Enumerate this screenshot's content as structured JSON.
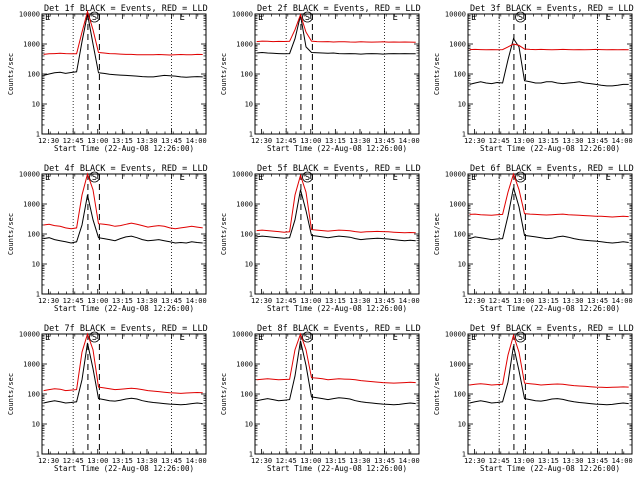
{
  "figure": {
    "panel_title_suffix": "BLACK = Events, RED = LLD",
    "xlabel": "Start Time (22-Aug-08 12:26:00)",
    "ylabel": "Counts/sec"
  },
  "colors": {
    "events": "#000000",
    "lld": "#e00000",
    "axes": "#000000"
  },
  "chart_data": [
    {
      "type": "line",
      "detector": "Det 1f",
      "title": "Det 1f  BLACK = Events, RED = LLD",
      "x_ticks": [
        "12:30",
        "12:45",
        "13:00",
        "13:15",
        "13:30",
        "13:45",
        "14:00"
      ],
      "y_ticks": [
        "1",
        "10",
        "100",
        "1000",
        "10000"
      ],
      "ylim": [
        1,
        10000
      ],
      "yscale": "log",
      "markers": [
        {
          "label": "S",
          "time": "12:58"
        },
        {
          "label": "E",
          "time": "12:26"
        },
        {
          "label": "E",
          "time": "13:48"
        }
      ],
      "series": [
        {
          "values": [
            90,
            100,
            110,
            115,
            105,
            112,
            118,
            1200,
            10000,
            1000,
            110,
            105,
            98,
            95,
            92,
            90,
            88,
            85,
            82,
            80,
            80,
            85,
            90,
            88,
            85,
            80,
            78,
            80,
            82,
            80
          ]
        },
        {
          "values": [
            450,
            470,
            480,
            490,
            480,
            475,
            470,
            2500,
            12000,
            3000,
            520,
            500,
            480,
            470,
            460,
            450,
            450,
            440,
            440,
            435,
            440,
            445,
            440,
            430,
            440,
            445,
            440,
            440,
            450,
            445
          ]
        }
      ]
    },
    {
      "type": "line",
      "detector": "Det 2f",
      "title": "Det 2f  BLACK = Events, RED = LLD",
      "x_ticks": [
        "12:30",
        "12:45",
        "13:00",
        "13:15",
        "13:30",
        "13:45",
        "14:00"
      ],
      "y_ticks": [
        "1",
        "10",
        "100",
        "1000",
        "10000"
      ],
      "ylim": [
        1,
        10000
      ],
      "yscale": "log",
      "markers": [
        {
          "label": "S",
          "time": "12:58"
        },
        {
          "label": "E",
          "time": "12:26"
        },
        {
          "label": "E",
          "time": "13:48"
        }
      ],
      "series": [
        {
          "values": [
            500,
            520,
            500,
            490,
            480,
            470,
            480,
            1500,
            9000,
            800,
            520,
            510,
            500,
            490,
            500,
            480,
            470,
            480,
            470,
            460,
            470,
            480,
            470,
            460,
            470,
            480,
            470,
            480,
            470,
            470
          ]
        },
        {
          "values": [
            1200,
            1250,
            1230,
            1200,
            1220,
            1210,
            1230,
            3000,
            9500,
            2500,
            1250,
            1200,
            1180,
            1200,
            1170,
            1180,
            1190,
            1170,
            1160,
            1180,
            1170,
            1160,
            1170,
            1180,
            1160,
            1170,
            1160,
            1170,
            1160,
            1150
          ]
        }
      ]
    },
    {
      "type": "line",
      "detector": "Det 3f",
      "title": "Det 3f  BLACK = Events, RED = LLD",
      "x_ticks": [
        "12:30",
        "12:45",
        "13:00",
        "13:15",
        "13:30",
        "13:45",
        "14:00"
      ],
      "y_ticks": [
        "1",
        "10",
        "100",
        "1000",
        "10000"
      ],
      "ylim": [
        1,
        10000
      ],
      "yscale": "log",
      "markers": [
        {
          "label": "S",
          "time": "12:58"
        },
        {
          "label": "E",
          "time": "12:26"
        },
        {
          "label": "E",
          "time": "13:48"
        }
      ],
      "series": [
        {
          "values": [
            45,
            50,
            55,
            50,
            48,
            52,
            50,
            300,
            1500,
            800,
            60,
            55,
            50,
            50,
            55,
            55,
            50,
            48,
            50,
            52,
            55,
            50,
            48,
            45,
            42,
            40,
            40,
            42,
            45,
            45
          ]
        },
        {
          "values": [
            650,
            660,
            650,
            640,
            650,
            640,
            650,
            800,
            1000,
            900,
            680,
            660,
            650,
            660,
            650,
            640,
            650,
            660,
            650,
            640,
            650,
            640,
            650,
            660,
            650,
            640,
            650,
            640,
            650,
            640
          ]
        }
      ]
    },
    {
      "type": "line",
      "detector": "Det 4f",
      "title": "Det 4f  BLACK = Events, RED = LLD",
      "x_ticks": [
        "12:30",
        "12:45",
        "13:00",
        "13:15",
        "13:30",
        "13:45",
        "14:00"
      ],
      "y_ticks": [
        "1",
        "10",
        "100",
        "1000",
        "10000"
      ],
      "ylim": [
        1,
        10000
      ],
      "yscale": "log",
      "markers": [
        {
          "label": "S",
          "time": "12:58"
        },
        {
          "label": "E",
          "time": "12:26"
        },
        {
          "label": "E",
          "time": "13:48"
        }
      ],
      "series": [
        {
          "values": [
            70,
            75,
            65,
            60,
            55,
            50,
            55,
            200,
            2000,
            300,
            75,
            70,
            65,
            60,
            70,
            80,
            85,
            75,
            65,
            60,
            62,
            65,
            60,
            55,
            50,
            52,
            50,
            55,
            52,
            50
          ]
        },
        {
          "values": [
            200,
            210,
            190,
            180,
            160,
            150,
            160,
            2000,
            10000,
            3000,
            220,
            210,
            200,
            180,
            190,
            210,
            230,
            210,
            190,
            170,
            180,
            190,
            180,
            160,
            150,
            160,
            170,
            180,
            170,
            160
          ]
        }
      ]
    },
    {
      "type": "line",
      "detector": "Det 5f",
      "title": "Det 5f  BLACK = Events, RED = LLD",
      "x_ticks": [
        "12:30",
        "12:45",
        "13:00",
        "13:15",
        "13:30",
        "13:45",
        "14:00"
      ],
      "y_ticks": [
        "1",
        "10",
        "100",
        "1000",
        "10000"
      ],
      "ylim": [
        1,
        10000
      ],
      "yscale": "log",
      "markers": [
        {
          "label": "S",
          "time": "12:58"
        },
        {
          "label": "E",
          "time": "12:26"
        },
        {
          "label": "E",
          "time": "13:48"
        }
      ],
      "series": [
        {
          "values": [
            80,
            85,
            82,
            78,
            75,
            72,
            75,
            300,
            3000,
            600,
            90,
            85,
            80,
            75,
            80,
            85,
            82,
            78,
            70,
            65,
            68,
            70,
            72,
            70,
            68,
            65,
            62,
            60,
            62,
            60
          ]
        },
        {
          "values": [
            130,
            135,
            130,
            125,
            120,
            115,
            118,
            2000,
            9000,
            2500,
            140,
            135,
            130,
            125,
            130,
            135,
            132,
            128,
            120,
            115,
            118,
            120,
            122,
            120,
            118,
            115,
            112,
            110,
            112,
            110
          ]
        }
      ]
    },
    {
      "type": "line",
      "detector": "Det 6f",
      "title": "Det 6f  BLACK = Events, RED = LLD",
      "x_ticks": [
        "12:30",
        "12:45",
        "13:00",
        "13:15",
        "13:30",
        "13:45",
        "14:00"
      ],
      "y_ticks": [
        "1",
        "10",
        "100",
        "1000",
        "10000"
      ],
      "ylim": [
        1,
        10000
      ],
      "yscale": "log",
      "markers": [
        {
          "label": "S",
          "time": "12:58"
        },
        {
          "label": "E",
          "time": "12:26"
        },
        {
          "label": "E",
          "time": "13:48"
        }
      ],
      "series": [
        {
          "values": [
            70,
            80,
            75,
            70,
            65,
            68,
            70,
            400,
            3500,
            800,
            90,
            85,
            80,
            75,
            70,
            72,
            80,
            85,
            78,
            70,
            65,
            62,
            60,
            58,
            55,
            52,
            50,
            52,
            55,
            52
          ]
        },
        {
          "values": [
            450,
            460,
            440,
            430,
            420,
            440,
            450,
            2500,
            10000,
            3000,
            480,
            460,
            450,
            440,
            430,
            440,
            450,
            460,
            440,
            430,
            420,
            410,
            400,
            390,
            390,
            380,
            370,
            380,
            390,
            380
          ]
        }
      ]
    },
    {
      "type": "line",
      "detector": "Det 7f",
      "title": "Det 7f  BLACK = Events, RED = LLD",
      "x_ticks": [
        "12:30",
        "12:45",
        "13:00",
        "13:15",
        "13:30",
        "13:45",
        "14:00"
      ],
      "y_ticks": [
        "1",
        "10",
        "100",
        "1000",
        "10000"
      ],
      "ylim": [
        1,
        10000
      ],
      "yscale": "log",
      "markers": [
        {
          "label": "S",
          "time": "12:58"
        },
        {
          "label": "E",
          "time": "12:26"
        },
        {
          "label": "E",
          "time": "13:48"
        }
      ],
      "series": [
        {
          "values": [
            50,
            55,
            60,
            55,
            50,
            52,
            55,
            300,
            5000,
            700,
            70,
            65,
            60,
            58,
            62,
            68,
            72,
            68,
            60,
            55,
            52,
            50,
            48,
            46,
            45,
            44,
            45,
            48,
            50,
            48
          ]
        },
        {
          "values": [
            130,
            140,
            150,
            145,
            130,
            135,
            140,
            2500,
            10000,
            3000,
            170,
            160,
            150,
            140,
            145,
            150,
            155,
            150,
            140,
            130,
            125,
            120,
            115,
            110,
            108,
            105,
            108,
            110,
            112,
            110
          ]
        }
      ]
    },
    {
      "type": "line",
      "detector": "Det 8f",
      "title": "Det 8f  BLACK = Events, RED = LLD",
      "x_ticks": [
        "12:30",
        "12:45",
        "13:00",
        "13:15",
        "13:30",
        "13:45",
        "14:00"
      ],
      "y_ticks": [
        "1",
        "10",
        "100",
        "1000",
        "10000"
      ],
      "ylim": [
        1,
        10000
      ],
      "yscale": "log",
      "markers": [
        {
          "label": "S",
          "time": "12:58"
        },
        {
          "label": "E",
          "time": "12:26"
        },
        {
          "label": "E",
          "time": "13:48"
        }
      ],
      "series": [
        {
          "values": [
            60,
            65,
            70,
            65,
            60,
            62,
            65,
            400,
            6000,
            900,
            80,
            75,
            70,
            65,
            70,
            75,
            72,
            68,
            60,
            55,
            52,
            50,
            48,
            46,
            45,
            44,
            45,
            48,
            50,
            48
          ]
        },
        {
          "values": [
            300,
            310,
            320,
            310,
            300,
            305,
            310,
            3000,
            10000,
            3000,
            350,
            340,
            320,
            300,
            310,
            320,
            315,
            310,
            300,
            280,
            270,
            260,
            250,
            240,
            235,
            230,
            235,
            240,
            245,
            240
          ]
        }
      ]
    },
    {
      "type": "line",
      "detector": "Det 9f",
      "title": "Det 9f  BLACK = Events, RED = LLD",
      "x_ticks": [
        "12:30",
        "12:45",
        "13:00",
        "13:15",
        "13:30",
        "13:45",
        "14:00"
      ],
      "y_ticks": [
        "1",
        "10",
        "100",
        "1000",
        "10000"
      ],
      "ylim": [
        1,
        10000
      ],
      "yscale": "log",
      "markers": [
        {
          "label": "S",
          "time": "12:58"
        },
        {
          "label": "E",
          "time": "12:26"
        },
        {
          "label": "E",
          "time": "13:48"
        }
      ],
      "series": [
        {
          "values": [
            50,
            55,
            60,
            55,
            50,
            52,
            55,
            250,
            4000,
            600,
            70,
            65,
            60,
            58,
            62,
            68,
            70,
            66,
            60,
            55,
            52,
            50,
            48,
            46,
            45,
            44,
            45,
            48,
            50,
            48
          ]
        },
        {
          "values": [
            200,
            210,
            220,
            210,
            200,
            205,
            210,
            2000,
            9000,
            2500,
            230,
            220,
            210,
            200,
            205,
            210,
            215,
            210,
            200,
            190,
            185,
            180,
            175,
            170,
            168,
            165,
            168,
            170,
            172,
            170
          ]
        }
      ]
    }
  ]
}
